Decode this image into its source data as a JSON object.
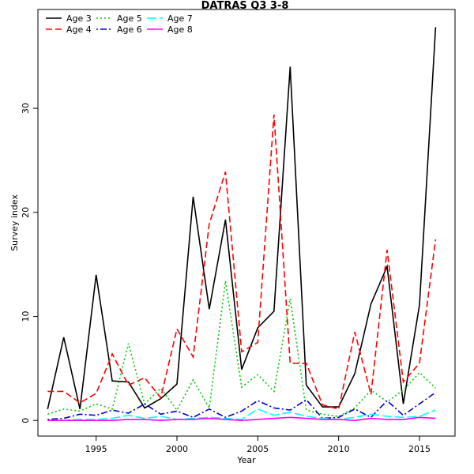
{
  "chart_data": {
    "type": "line",
    "title": "DATRAS Q3 3-8",
    "xlabel": "Year",
    "ylabel": "Survey index",
    "xlim": [
      1991.4,
      2017.2
    ],
    "ylim": [
      -1.5,
      39.5
    ],
    "x_ticks": [
      1995,
      2000,
      2005,
      2010,
      2015
    ],
    "y_ticks": [
      0,
      10,
      20,
      30
    ],
    "grid": false,
    "legend_position": "top-left",
    "x": [
      1992,
      1993,
      1994,
      1995,
      1996,
      1997,
      1998,
      1999,
      2000,
      2001,
      2002,
      2003,
      2004,
      2005,
      2006,
      2007,
      2008,
      2009,
      2010,
      2011,
      2012,
      2013,
      2014,
      2015,
      2016
    ],
    "series": [
      {
        "name": "Age 3",
        "color": "#000000",
        "dash": "solid",
        "values": [
          1.1,
          8.0,
          1.1,
          14.0,
          3.8,
          3.7,
          1.2,
          2.1,
          3.5,
          21.5,
          10.7,
          19.3,
          4.9,
          8.9,
          10.5,
          34.0,
          3.4,
          1.3,
          1.3,
          4.5,
          11.2,
          14.8,
          1.6,
          11.1,
          37.8
        ]
      },
      {
        "name": "Age 4",
        "color": "#ff0000",
        "dash": "dashed",
        "values": [
          2.8,
          2.8,
          1.7,
          2.6,
          6.4,
          3.4,
          4.1,
          2.2,
          8.8,
          6.1,
          18.9,
          23.9,
          6.6,
          7.5,
          29.4,
          5.5,
          5.5,
          1.5,
          1.1,
          8.5,
          2.5,
          16.4,
          3.7,
          5.5,
          17.4
        ]
      },
      {
        "name": "Age 5",
        "color": "#00cc00",
        "dash": "dotted",
        "values": [
          0.6,
          1.1,
          0.9,
          1.6,
          1.1,
          7.4,
          1.6,
          3.1,
          1.0,
          3.9,
          1.2,
          13.4,
          3.2,
          4.4,
          2.8,
          11.7,
          1.0,
          0.6,
          0.4,
          1.2,
          2.9,
          1.8,
          2.9,
          4.6,
          3.1
        ]
      },
      {
        "name": "Age 6",
        "color": "#0000cc",
        "dash": "dashdot",
        "values": [
          0.1,
          0.2,
          0.6,
          0.5,
          1.0,
          0.7,
          1.6,
          0.6,
          0.9,
          0.3,
          1.1,
          0.3,
          0.9,
          1.9,
          1.2,
          1.0,
          2.0,
          0.2,
          0.3,
          1.1,
          0.3,
          1.9,
          0.5,
          1.6,
          2.7
        ]
      },
      {
        "name": "Age 7",
        "color": "#00ffff",
        "dash": "longdash",
        "values": [
          0.0,
          0.0,
          0.1,
          0.1,
          0.2,
          0.5,
          0.2,
          0.4,
          0.1,
          0.2,
          0.3,
          0.2,
          0.1,
          1.1,
          0.5,
          0.8,
          0.4,
          0.2,
          0.1,
          0.3,
          0.6,
          0.4,
          0.3,
          0.4,
          1.0
        ]
      },
      {
        "name": "Age 8",
        "color": "#ff00ff",
        "dash": "solid",
        "values": [
          0.0,
          0.0,
          0.0,
          0.0,
          0.0,
          0.1,
          0.1,
          0.0,
          0.1,
          0.1,
          0.2,
          0.1,
          0.0,
          0.1,
          0.2,
          0.3,
          0.2,
          0.1,
          0.1,
          0.0,
          0.2,
          0.1,
          0.1,
          0.3,
          0.2
        ]
      }
    ]
  }
}
